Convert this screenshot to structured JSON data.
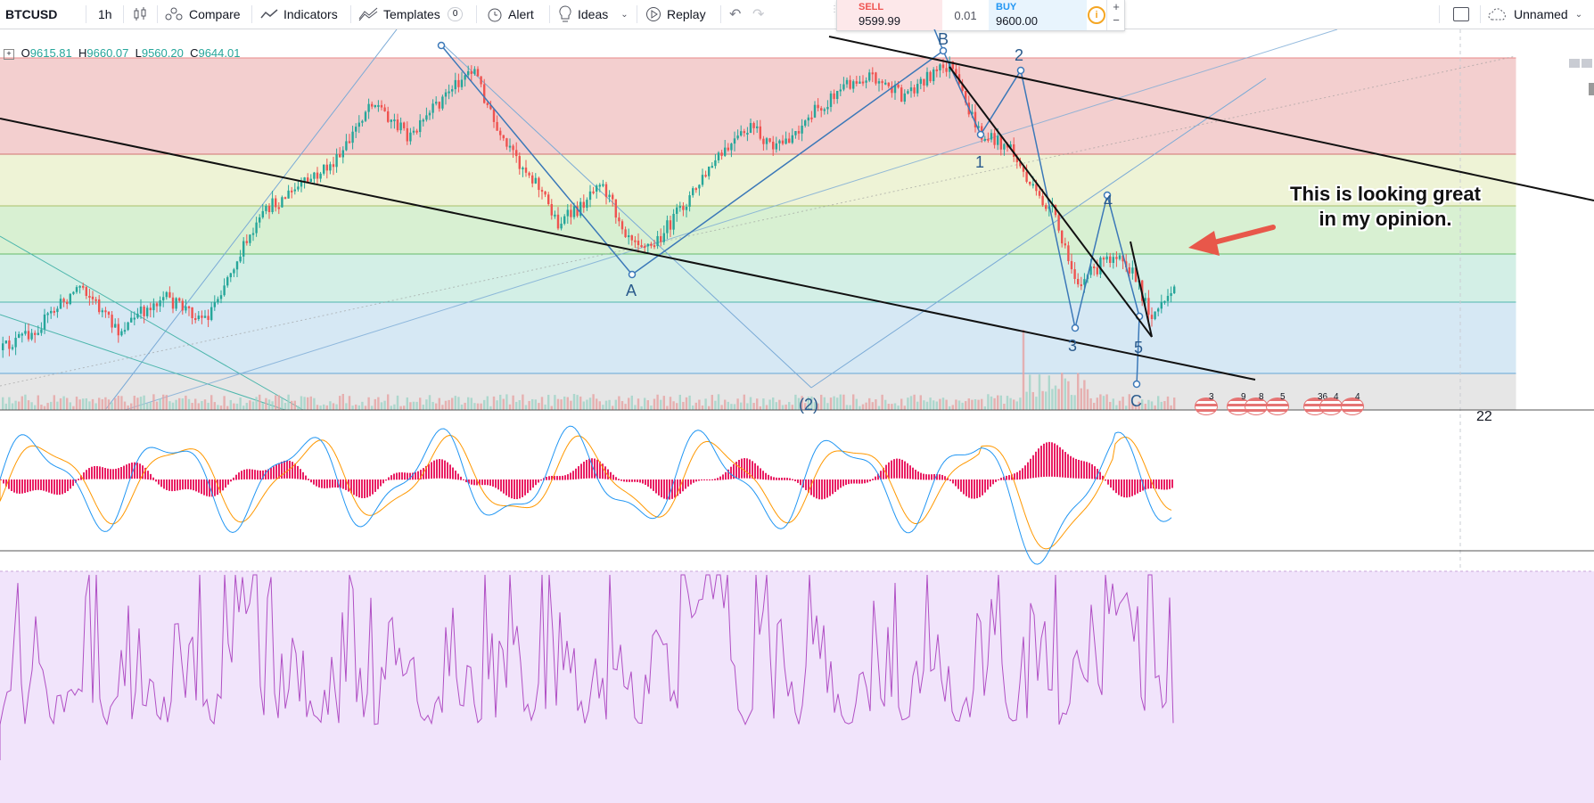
{
  "toolbar": {
    "symbol": "BTCUSD",
    "interval": "1h",
    "compare": "Compare",
    "indicators": "Indicators",
    "templates": "Templates",
    "templates_count": "0",
    "alert": "Alert",
    "ideas": "Ideas",
    "replay": "Replay",
    "layout_name": "Unnamed"
  },
  "trade": {
    "sell_label": "SELL",
    "sell_price": "9599.99",
    "spread": "0.01",
    "buy_label": "BUY",
    "buy_price": "9600.00",
    "plus": "+",
    "minus": "−"
  },
  "legend": {
    "o_label": "O",
    "o_value": "9615.81",
    "h_label": "H",
    "h_value": "9660.07",
    "l_label": "L",
    "l_value": "9560.20",
    "c_label": "C",
    "c_value": "9644.01"
  },
  "annotation": {
    "line1": "This is looking great",
    "line2": "in my opinion."
  },
  "waves": {
    "A": "A",
    "B": "B",
    "C": "C",
    "w1": "1",
    "w2": "2",
    "w3": "3",
    "w4": "4",
    "w5": "5",
    "w2big": "(2)"
  },
  "events": [
    "3",
    "9",
    "8",
    "5",
    "36",
    "4",
    "4"
  ],
  "scale_label": "22",
  "colors": {
    "fib_red": "#f3cfcf",
    "fib_yellow": "#eef3d6",
    "fib_green": "#d8f0d2",
    "fib_teal": "#d3efe6",
    "fib_blue": "#d6e8f4",
    "fib_grey": "#e6e6e6",
    "candle_up": "#26a69a",
    "candle_down": "#ef5350",
    "wave_line": "#3b78b8",
    "macd_hist": "#e91e63",
    "macd_line": "#2196f3",
    "signal_line": "#ff9800",
    "osc_fill": "#f1e4fb",
    "osc_line": "#b04fc4",
    "arrow": "#e8574a"
  },
  "icons": {
    "chart_type": "candles-icon",
    "compare": "compare-icon",
    "indicators": "indicators-icon",
    "templates": "templates-icon",
    "alert": "alert-clock-icon",
    "ideas": "lightbulb-icon",
    "replay": "replay-icon",
    "undo": "undo-icon",
    "redo": "redo-icon",
    "fullscreen": "square-icon",
    "cloud": "cloud-icon"
  }
}
